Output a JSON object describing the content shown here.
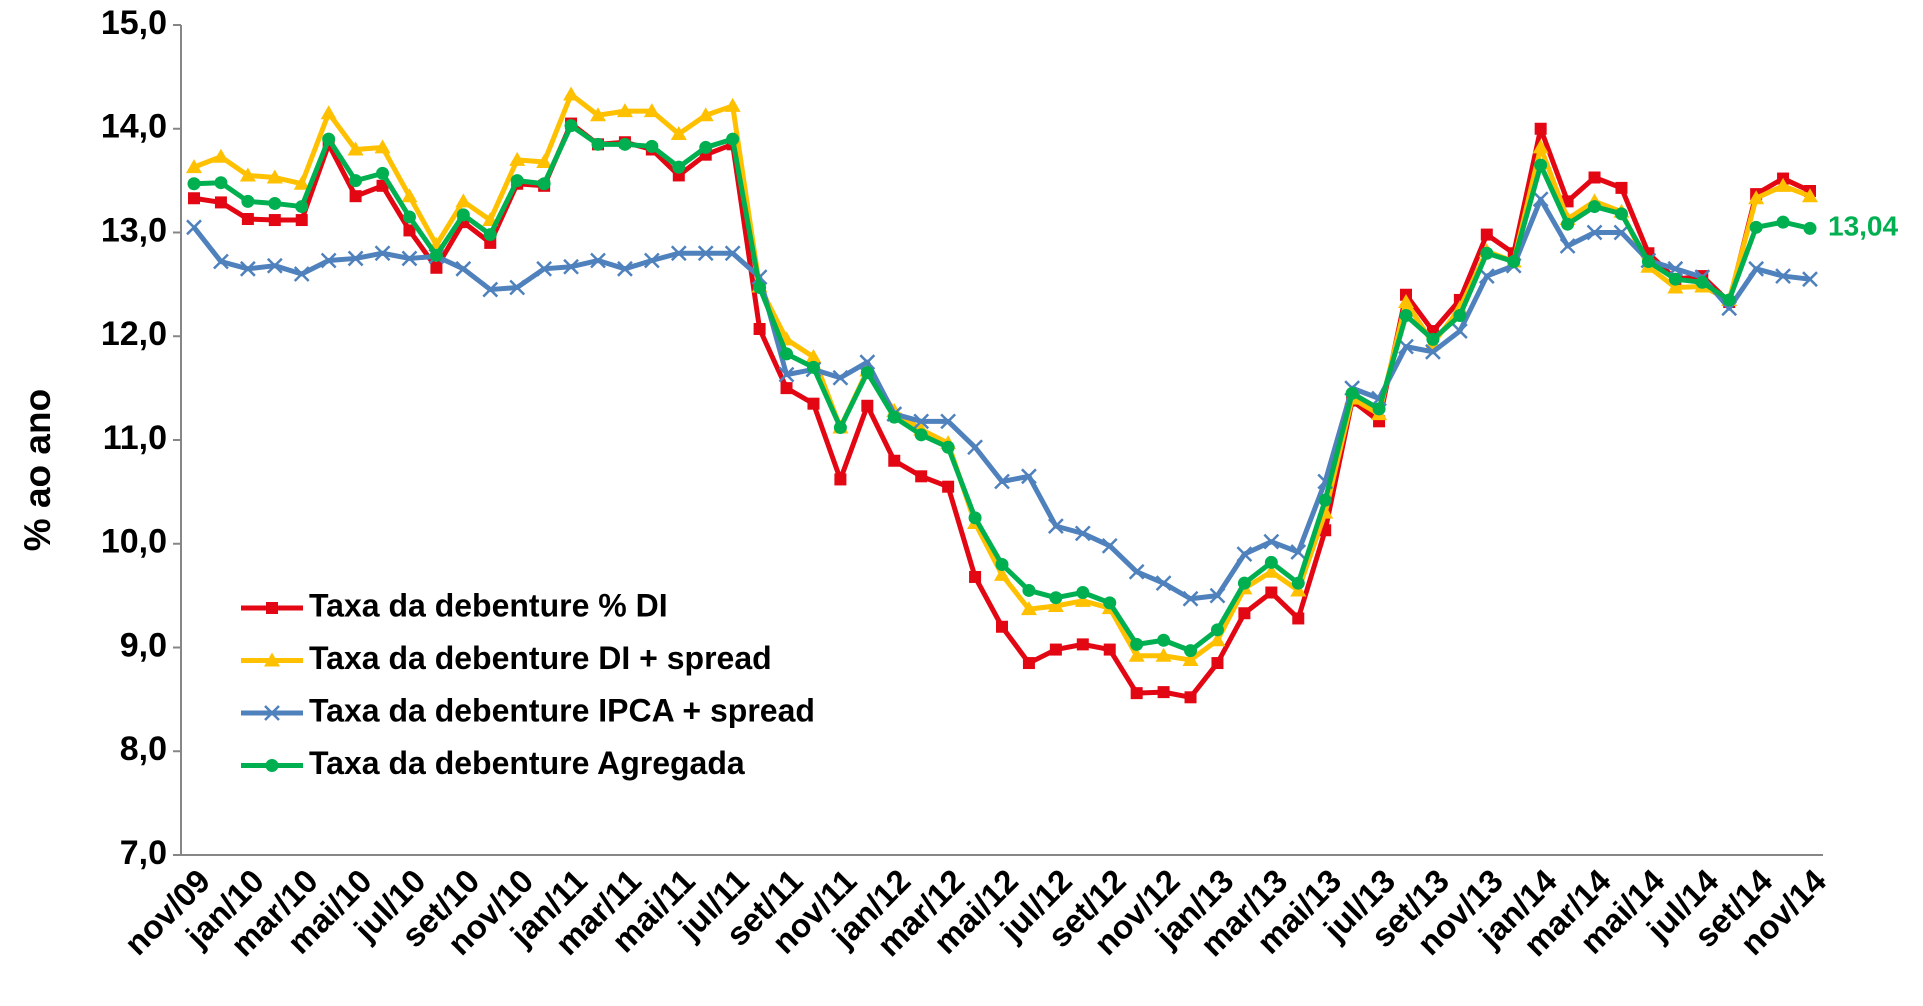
{
  "chart_data": {
    "type": "line",
    "y_label": "% ao ano",
    "categories": [
      "nov/09",
      null,
      "jan/10",
      null,
      "mar/10",
      null,
      "mai/10",
      null,
      "jul/10",
      null,
      "set/10",
      null,
      "nov/10",
      null,
      "jan/11",
      null,
      "mar/11",
      null,
      "mai/11",
      null,
      "jul/11",
      null,
      "set/11",
      null,
      "nov/11",
      null,
      "jan/12",
      null,
      "mar/12",
      null,
      "mai/12",
      null,
      "jul/12",
      null,
      "set/12",
      null,
      "nov/12",
      null,
      "jan/13",
      null,
      "mar/13",
      null,
      "mai/13",
      null,
      "jul/13",
      null,
      "set/13",
      null,
      "nov/13",
      null,
      "jan/14",
      null,
      "mar/14",
      null,
      "mai/14",
      null,
      "jul/14",
      null,
      "set/14",
      null,
      "nov/14"
    ],
    "ylim": [
      7,
      15
    ],
    "yticks": [
      {
        "value": 7,
        "label": "7,0"
      },
      {
        "value": 8,
        "label": "8,0"
      },
      {
        "value": 9,
        "label": "9,0"
      },
      {
        "value": 10,
        "label": "10,0"
      },
      {
        "value": 11,
        "label": "11,0"
      },
      {
        "value": 12,
        "label": "12,0"
      },
      {
        "value": 13,
        "label": "13,0"
      },
      {
        "value": 14,
        "label": "14,0"
      },
      {
        "value": 15,
        "label": "15,0"
      }
    ],
    "grid": false,
    "legend": "lower-left",
    "series": [
      {
        "name": "Taxa da debenture % DI",
        "color": "#e30613",
        "marker": "square",
        "values": [
          13.33,
          13.29,
          13.13,
          13.12,
          13.12,
          13.85,
          13.35,
          13.45,
          13.02,
          12.66,
          13.1,
          12.9,
          13.47,
          13.45,
          14.05,
          13.85,
          13.87,
          13.8,
          13.55,
          13.75,
          13.85,
          12.07,
          11.5,
          11.35,
          10.62,
          11.33,
          10.8,
          10.65,
          10.55,
          9.68,
          9.2,
          8.85,
          8.98,
          9.03,
          8.98,
          8.56,
          8.57,
          8.52,
          8.85,
          9.33,
          9.53,
          9.28,
          10.13,
          11.38,
          11.18,
          12.4,
          12.05,
          12.35,
          12.98,
          12.8,
          14.0,
          13.3,
          13.53,
          13.43,
          12.8,
          12.55,
          12.58,
          12.33,
          13.37,
          13.52,
          13.4
        ]
      },
      {
        "name": "Taxa da debenture DI + spread",
        "color": "#ffc000",
        "marker": "triangle",
        "values": [
          13.63,
          13.73,
          13.55,
          13.53,
          13.47,
          14.15,
          13.8,
          13.82,
          13.35,
          12.88,
          13.3,
          13.12,
          13.7,
          13.68,
          14.33,
          14.13,
          14.17,
          14.17,
          13.95,
          14.13,
          14.22,
          12.48,
          11.97,
          11.8,
          11.12,
          11.67,
          11.28,
          11.1,
          10.97,
          10.2,
          9.7,
          9.37,
          9.4,
          9.45,
          9.38,
          8.92,
          8.92,
          8.88,
          9.07,
          9.57,
          9.73,
          9.55,
          10.3,
          11.4,
          11.25,
          12.33,
          11.93,
          12.27,
          12.82,
          12.72,
          13.82,
          13.13,
          13.3,
          13.2,
          12.67,
          12.47,
          12.48,
          12.35,
          13.33,
          13.45,
          13.35
        ]
      },
      {
        "name": "Taxa da debenture IPCA + spread",
        "color": "#4f81bd",
        "marker": "x",
        "values": [
          13.05,
          12.72,
          12.65,
          12.68,
          12.6,
          12.73,
          12.75,
          12.8,
          12.75,
          12.77,
          12.65,
          12.45,
          12.47,
          12.65,
          12.67,
          12.73,
          12.65,
          12.73,
          12.8,
          12.8,
          12.8,
          12.57,
          11.63,
          11.68,
          11.6,
          11.75,
          11.25,
          11.18,
          11.18,
          10.93,
          10.6,
          10.65,
          10.17,
          10.1,
          9.98,
          9.73,
          9.62,
          9.47,
          9.5,
          9.9,
          10.02,
          9.92,
          10.6,
          11.5,
          11.4,
          11.9,
          11.85,
          12.05,
          12.58,
          12.68,
          13.32,
          12.87,
          13.0,
          13.0,
          12.73,
          12.65,
          12.57,
          12.27,
          12.65,
          12.58,
          12.55
        ]
      },
      {
        "name": "Taxa da debenture Agregada",
        "color": "#00b050",
        "marker": "circle",
        "values": [
          13.47,
          13.48,
          13.3,
          13.28,
          13.25,
          13.9,
          13.5,
          13.57,
          13.15,
          12.78,
          13.17,
          12.98,
          13.5,
          13.47,
          14.03,
          13.85,
          13.85,
          13.83,
          13.63,
          13.82,
          13.9,
          12.47,
          11.83,
          11.7,
          11.12,
          11.65,
          11.22,
          11.05,
          10.93,
          10.25,
          9.8,
          9.55,
          9.48,
          9.53,
          9.43,
          9.03,
          9.07,
          8.97,
          9.17,
          9.62,
          9.82,
          9.62,
          10.42,
          11.45,
          11.3,
          12.2,
          11.97,
          12.2,
          12.8,
          12.72,
          13.65,
          13.08,
          13.25,
          13.18,
          12.72,
          12.55,
          12.52,
          12.35,
          13.05,
          13.1,
          13.04
        ],
        "value_labels": [
          null,
          null,
          null,
          null,
          null,
          null,
          null,
          null,
          null,
          null,
          null,
          null,
          null,
          null,
          null,
          null,
          null,
          null,
          null,
          null,
          null,
          null,
          null,
          null,
          null,
          null,
          null,
          null,
          null,
          null,
          null,
          null,
          null,
          null,
          null,
          null,
          null,
          null,
          null,
          null,
          null,
          null,
          null,
          null,
          null,
          null,
          null,
          null,
          null,
          null,
          null,
          null,
          null,
          null,
          null,
          null,
          null,
          null,
          null,
          null,
          "13,04"
        ]
      }
    ]
  }
}
